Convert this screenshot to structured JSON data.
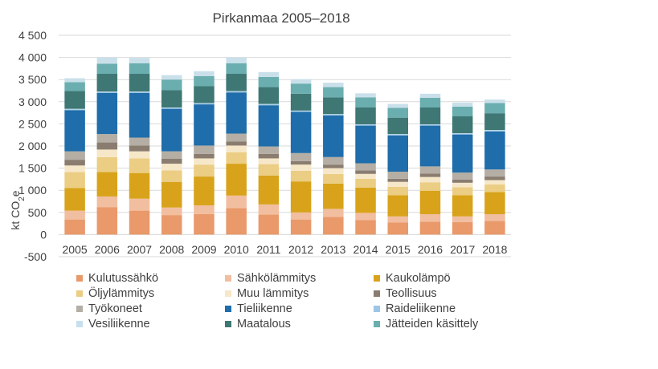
{
  "chart_data": {
    "type": "bar",
    "stacked": true,
    "title": "Pirkanmaa 2005–2018",
    "ylabel": "kt CO",
    "ylabel_sub": "2",
    "ylabel_suffix": "e",
    "ylim": [
      -500,
      4500
    ],
    "yticks": [
      -500,
      0,
      500,
      1000,
      1500,
      2000,
      2500,
      3000,
      3500,
      4000,
      4500
    ],
    "ytick_labels": [
      "-500",
      "0",
      "500",
      "1 000",
      "1 500",
      "2 000",
      "2 500",
      "3 000",
      "3 500",
      "4 000",
      "4 500"
    ],
    "grid": true,
    "legend_position": "bottom",
    "categories": [
      "2005",
      "2006",
      "2007",
      "2008",
      "2009",
      "2010",
      "2011",
      "2012",
      "2013",
      "2014",
      "2015",
      "2016",
      "2017",
      "2018"
    ],
    "series": [
      {
        "name": "Kulutussähkö",
        "color": "#E9996A",
        "values": [
          340,
          620,
          540,
          440,
          460,
          600,
          450,
          340,
          400,
          330,
          270,
          290,
          280,
          310
        ]
      },
      {
        "name": "Sähkölämmitys",
        "color": "#F2BEA0",
        "values": [
          200,
          240,
          270,
          170,
          200,
          280,
          230,
          160,
          180,
          160,
          140,
          170,
          130,
          150
        ]
      },
      {
        "name": "Kaukolämpö",
        "color": "#D8A31A",
        "values": [
          510,
          550,
          580,
          580,
          650,
          720,
          650,
          700,
          570,
          570,
          480,
          530,
          480,
          500
        ]
      },
      {
        "name": "Öljylämmitys",
        "color": "#EBCD83",
        "values": [
          360,
          340,
          330,
          260,
          270,
          260,
          260,
          240,
          220,
          200,
          190,
          190,
          180,
          170
        ]
      },
      {
        "name": "Muu lämmitys",
        "color": "#F6E7C9",
        "values": [
          150,
          170,
          160,
          150,
          140,
          150,
          130,
          140,
          130,
          110,
          110,
          120,
          100,
          100
        ]
      },
      {
        "name": "Teollisuus",
        "color": "#8A7D70",
        "values": [
          130,
          160,
          130,
          110,
          100,
          90,
          100,
          80,
          80,
          80,
          70,
          80,
          70,
          80
        ]
      },
      {
        "name": "Työkoneet",
        "color": "#B4AEA4",
        "values": [
          190,
          190,
          180,
          170,
          190,
          180,
          170,
          180,
          170,
          160,
          160,
          160,
          160,
          160
        ]
      },
      {
        "name": "Tieliikenne",
        "color": "#1F6DAA",
        "values": [
          930,
          930,
          1010,
          960,
          930,
          930,
          930,
          930,
          940,
          850,
          820,
          920,
          860,
          860
        ]
      },
      {
        "name": "Raideliikenne",
        "color": "#9DC6E6",
        "values": [
          20,
          20,
          20,
          20,
          20,
          20,
          20,
          20,
          20,
          20,
          20,
          20,
          20,
          20
        ]
      },
      {
        "name": "Vesiliikenne",
        "color": "#C7E0EE",
        "values": [
          10,
          10,
          10,
          10,
          10,
          10,
          10,
          10,
          10,
          10,
          10,
          10,
          10,
          10
        ]
      },
      {
        "name": "Maatalous",
        "color": "#3E7774",
        "values": [
          400,
          400,
          400,
          390,
          380,
          390,
          380,
          380,
          380,
          380,
          370,
          380,
          380,
          380
        ]
      },
      {
        "name": "Jätteiden käsittely",
        "color": "#6AAEB0",
        "values": [
          200,
          230,
          240,
          240,
          230,
          240,
          230,
          230,
          230,
          230,
          220,
          220,
          220,
          230
        ]
      },
      {
        "name": "",
        "color": "#C9E0EA",
        "values": [
          90,
          140,
          120,
          100,
          110,
          130,
          110,
          100,
          100,
          90,
          90,
          90,
          90,
          80
        ]
      }
    ]
  }
}
